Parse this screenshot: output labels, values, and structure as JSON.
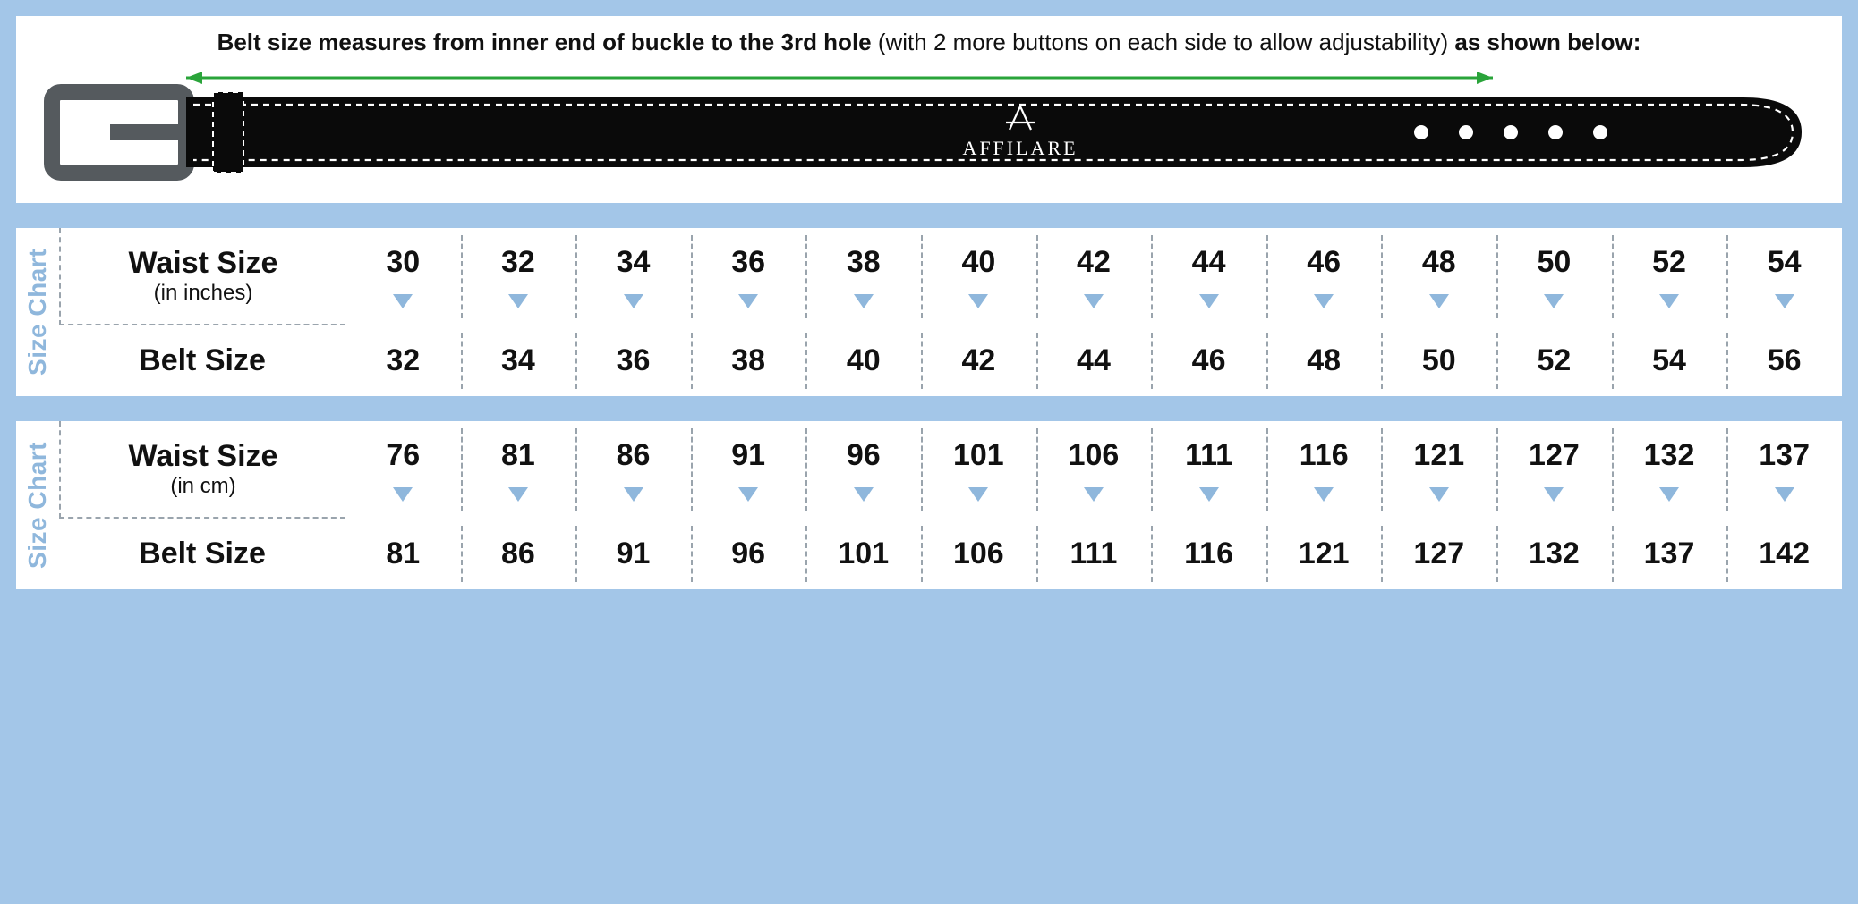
{
  "colors": {
    "page_bg": "#a3c6e8",
    "panel_bg": "#ffffff",
    "text": "#111111",
    "accent": "#8fb7dc",
    "dash": "#9aa4ad",
    "arrow": "#2aa43a",
    "belt_body": "#0a0a0a",
    "belt_stitch": "#ffffff",
    "belt_logo_text": "#ffffff",
    "buckle": "#555a5e"
  },
  "typography": {
    "instruction_fontsize": 26,
    "row_title_fontsize": 34,
    "row_sub_fontsize": 24,
    "cell_num_fontsize": 34,
    "vlabel_fontsize": 28
  },
  "instruction": {
    "bold1": "Belt size measures from inner end of buckle to the 3rd hole",
    "mid": " (with 2 more buttons on each side to allow adjustability) ",
    "bold2": "as shown below:"
  },
  "belt": {
    "brand": "AFFILARE",
    "holes": 5
  },
  "vlabel": "Size Chart",
  "charts": [
    {
      "top_label": "Waist Size",
      "top_sub": "(in inches)",
      "bottom_label": "Belt Size",
      "top_values": [
        30,
        32,
        34,
        36,
        38,
        40,
        42,
        44,
        46,
        48,
        50,
        52,
        54
      ],
      "bottom_values": [
        32,
        34,
        36,
        38,
        40,
        42,
        44,
        46,
        48,
        50,
        52,
        54,
        56
      ]
    },
    {
      "top_label": "Waist Size",
      "top_sub": "(in cm)",
      "bottom_label": "Belt Size",
      "top_values": [
        76,
        81,
        86,
        91,
        96,
        101,
        106,
        111,
        116,
        121,
        127,
        132,
        137
      ],
      "bottom_values": [
        81,
        86,
        91,
        96,
        101,
        106,
        111,
        116,
        121,
        127,
        132,
        137,
        142
      ]
    }
  ]
}
